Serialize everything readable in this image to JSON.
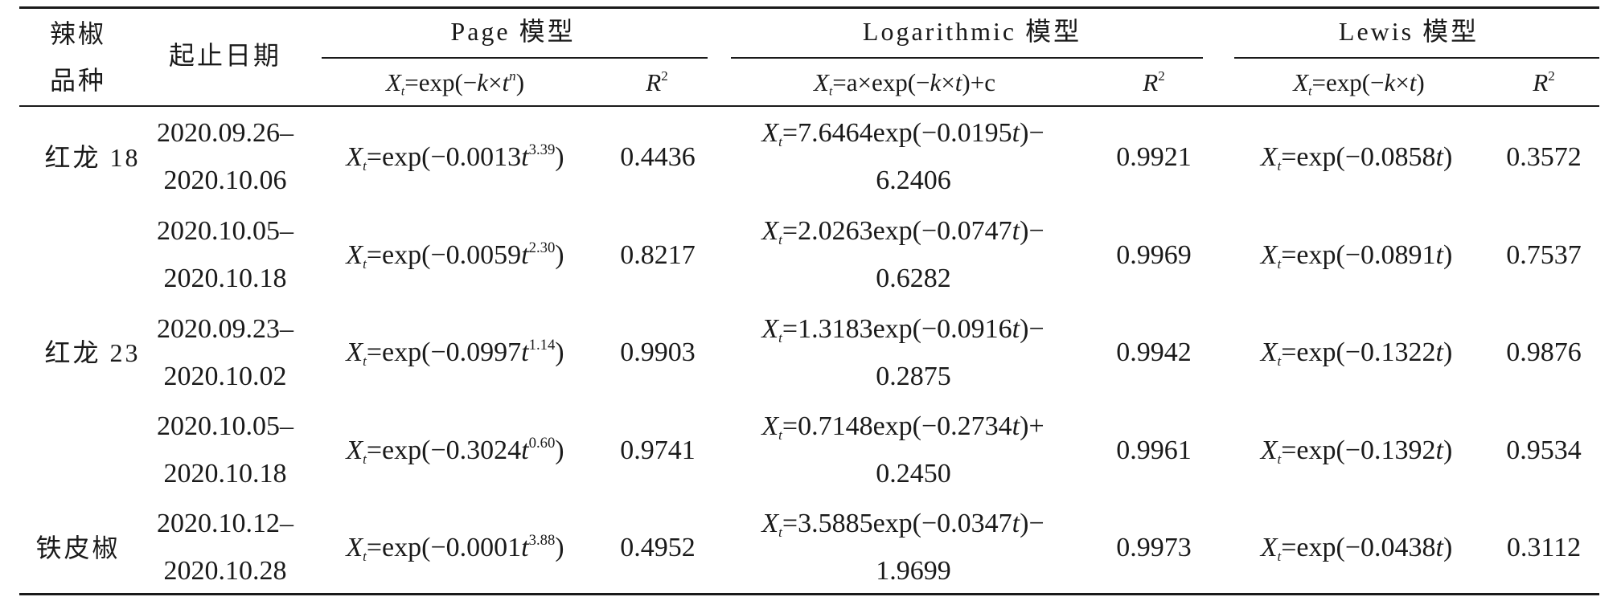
{
  "table": {
    "header": {
      "variety_line1": "辣椒",
      "variety_line2": "品种",
      "dates": "起止日期",
      "page_model": "Page 模型",
      "log_model": "Logarithmic 模型",
      "lewis_model": "Lewis 模型",
      "page_formula": {
        "base": "X",
        "sub": "t",
        "rest": "=exp(−k×t",
        "sup": "n",
        "end": ")"
      },
      "log_formula": {
        "base": "X",
        "sub": "t",
        "rest": "=a×exp(−k×t)+c"
      },
      "lewis_formula": {
        "base": "X",
        "sub": "t",
        "rest": "=exp(−k×t)"
      },
      "r2_base": "R",
      "r2_sup": "2"
    },
    "rows": [
      {
        "variety": "红龙 18",
        "date_start": "2020.09.26–",
        "date_end": "2020.10.06",
        "page_coef": "=exp(−0.0013t",
        "page_exp": "3.39",
        "page_r2": "0.4436",
        "log_line1": "=7.6464exp(−0.0195t)−",
        "log_line2": "6.2406",
        "log_r2": "0.9921",
        "lewis_formula": "=exp(−0.0858t)",
        "lewis_r2": "0.3572"
      },
      {
        "variety": "",
        "date_start": "2020.10.05–",
        "date_end": "2020.10.18",
        "page_coef": "=exp(−0.0059t",
        "page_exp": "2.30",
        "page_r2": "0.8217",
        "log_line1": "=2.0263exp(−0.0747t)−",
        "log_line2": "0.6282",
        "log_r2": "0.9969",
        "lewis_formula": "=exp(−0.0891t)",
        "lewis_r2": "0.7537"
      },
      {
        "variety": "红龙 23",
        "date_start": "2020.09.23–",
        "date_end": "2020.10.02",
        "page_coef": "=exp(−0.0997t",
        "page_exp": "1.14",
        "page_r2": "0.9903",
        "log_line1": "=1.3183exp(−0.0916t)−",
        "log_line2": "0.2875",
        "log_r2": "0.9942",
        "lewis_formula": "=exp(−0.1322t)",
        "lewis_r2": "0.9876"
      },
      {
        "variety": "",
        "date_start": "2020.10.05–",
        "date_end": "2020.10.18",
        "page_coef": "=exp(−0.3024t",
        "page_exp": "0.60",
        "page_r2": "0.9741",
        "log_line1": "=0.7148exp(−0.2734t)+",
        "log_line2": "0.2450",
        "log_r2": "0.9961",
        "lewis_formula": "=exp(−0.1392t)",
        "lewis_r2": "0.9534"
      },
      {
        "variety": "铁皮椒",
        "date_start": "2020.10.12–",
        "date_end": "2020.10.28",
        "page_coef": "=exp(−0.0001t",
        "page_exp": "3.88",
        "page_r2": "0.4952",
        "log_line1": "=3.5885exp(−0.0347t)−",
        "log_line2": "1.9699",
        "log_r2": "0.9973",
        "lewis_formula": "=exp(−0.0438t)",
        "lewis_r2": "0.3112"
      }
    ]
  }
}
